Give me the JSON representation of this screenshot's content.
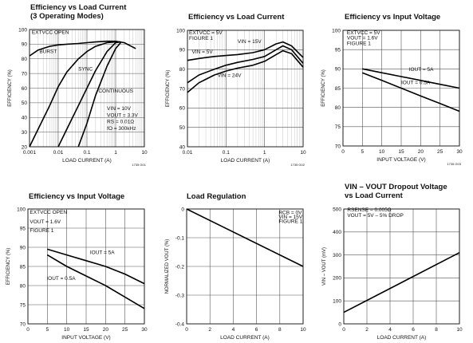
{
  "panels": [
    {
      "id": "p1",
      "title_lines": [
        "Efficiency vs Load Current",
        "(3 Operating Modes)"
      ],
      "chart_data": {
        "type": "line",
        "xlabel": "LOAD CURRENT (A)",
        "ylabel": "EFFICIENCY (%)",
        "xscale": "log",
        "xlim": [
          0.001,
          10
        ],
        "ylim": [
          20,
          100
        ],
        "xticks": [
          0.001,
          0.01,
          0.1,
          1,
          10
        ],
        "xtick_labels": [
          "0.001",
          "0.01",
          "0.1",
          "1",
          "10"
        ],
        "yticks": [
          20,
          30,
          40,
          50,
          60,
          70,
          80,
          90,
          100
        ],
        "grid": true,
        "series": [
          {
            "name": "EXTVCC OPEN",
            "x": [
              0.001,
              0.002,
              0.005,
              0.01,
              0.02,
              0.05,
              0.1,
              0.2,
              0.5,
              1,
              2,
              5
            ],
            "y": [
              82,
              86,
              88.5,
              89.5,
              90,
              90.5,
              91,
              91.5,
              92,
              92,
              91,
              87
            ]
          },
          {
            "name": "BURST",
            "x": [
              0.001,
              0.002,
              0.005,
              0.01,
              0.02,
              0.05,
              0.1,
              0.2,
              0.5,
              1,
              1.5
            ],
            "y": [
              20,
              32,
              48,
              61,
              71,
              80,
              85,
              88.5,
              91,
              91.5,
              91.5
            ]
          },
          {
            "name": "SYNC",
            "x": [
              0.01,
              0.02,
              0.05,
              0.1,
              0.2,
              0.5,
              1,
              1.5
            ],
            "y": [
              20,
              32,
              48,
              60,
              72,
              85,
              91,
              91.5
            ]
          },
          {
            "name": "CONTINUOUS",
            "x": [
              0.05,
              0.1,
              0.2,
              0.5,
              1,
              1.5
            ],
            "y": [
              20,
              36,
              55,
              75,
              87,
              91
            ]
          }
        ],
        "annotations": [
          {
            "text": "EXTVCC OPEN",
            "x": 0.0012,
            "y": 97
          },
          {
            "text": "BURST",
            "x": 0.0022,
            "y": 84
          },
          {
            "text": "SYNC",
            "x": 0.05,
            "y": 72
          },
          {
            "text": "CONTINUOUS",
            "x": 0.25,
            "y": 57
          },
          {
            "text": "VIN = 10V",
            "x": 0.5,
            "y": 45
          },
          {
            "text": "VOUT = 3.3V",
            "x": 0.5,
            "y": 40.5
          },
          {
            "text": "RS = 0.01Ω",
            "x": 0.5,
            "y": 36
          },
          {
            "text": "fO = 300kHz",
            "x": 0.5,
            "y": 31.5
          }
        ],
        "figure_id": "1735 G01"
      }
    },
    {
      "id": "p2",
      "title_lines": [
        "Efficiency vs Load Current"
      ],
      "chart_data": {
        "type": "line",
        "xlabel": "LOAD CURRENT (A)",
        "ylabel": "EFFICIENCY (%)",
        "xscale": "log",
        "xlim": [
          0.01,
          10
        ],
        "ylim": [
          40,
          100
        ],
        "xticks": [
          0.01,
          0.1,
          1,
          10
        ],
        "xtick_labels": [
          "0.01",
          "0.1",
          "1",
          "10"
        ],
        "yticks": [
          40,
          50,
          60,
          70,
          80,
          90,
          100
        ],
        "grid": true,
        "series": [
          {
            "name": "VIN = 5V",
            "x": [
              0.01,
              0.02,
              0.05,
              0.1,
              0.2,
              0.5,
              1,
              2,
              3,
              5,
              10
            ],
            "y": [
              84.5,
              85.5,
              86.5,
              87,
              87.5,
              88.5,
              90,
              93,
              94,
              92,
              86
            ]
          },
          {
            "name": "VIN = 15V",
            "x": [
              0.01,
              0.02,
              0.05,
              0.1,
              0.2,
              0.5,
              1,
              2,
              3,
              5,
              10
            ],
            "y": [
              73,
              77,
              80,
              82,
              83.5,
              85,
              86.5,
              90,
              92,
              90,
              83
            ]
          },
          {
            "name": "VIN = 24V",
            "x": [
              0.01,
              0.02,
              0.05,
              0.1,
              0.2,
              0.5,
              1,
              2,
              3,
              5,
              10
            ],
            "y": [
              68,
              73,
              77,
              79,
              80.5,
              82,
              84,
              87.5,
              89.5,
              88,
              81
            ]
          }
        ],
        "annotations": [
          {
            "text": "EXTVCC = 5V",
            "x": 0.011,
            "y": 98
          },
          {
            "text": "FIGURE 1",
            "x": 0.011,
            "y": 95
          },
          {
            "text": "VIN = 15V",
            "x": 0.2,
            "y": 93.5
          },
          {
            "text": "VIN = 5V",
            "x": 0.013,
            "y": 88
          },
          {
            "text": "VIN = 24V",
            "x": 0.06,
            "y": 76
          }
        ],
        "figure_id": "1735 G02"
      }
    },
    {
      "id": "p3",
      "title_lines": [
        "Efficiency vs Input Voltage"
      ],
      "chart_data": {
        "type": "line",
        "xlabel": "INPUT VOLTAGE (V)",
        "ylabel": "EFFICIENCY (%)",
        "xscale": "linear",
        "xlim": [
          0,
          30
        ],
        "ylim": [
          70,
          100
        ],
        "xticks": [
          0,
          5,
          10,
          15,
          20,
          25,
          30
        ],
        "xtick_labels": [
          "0",
          "5",
          "10",
          "15",
          "20",
          "25",
          "30"
        ],
        "yticks": [
          70,
          75,
          80,
          85,
          90,
          95,
          100
        ],
        "grid": true,
        "series": [
          {
            "name": "IOUT = 5A",
            "x": [
              5,
              10,
              15,
              20,
              25,
              30
            ],
            "y": [
              90,
              89,
              88,
              87,
              86,
              85
            ]
          },
          {
            "name": "IOUT = 0.5A",
            "x": [
              5,
              10,
              15,
              20,
              25,
              30
            ],
            "y": [
              89,
              87,
              85,
              83,
              81,
              79
            ]
          }
        ],
        "annotations": [
          {
            "text": "EXTVCC = 5V",
            "x": 1,
            "y": 99
          },
          {
            "text": "VOUT = 1.6V",
            "x": 1,
            "y": 97.6
          },
          {
            "text": "FIGURE 1",
            "x": 1,
            "y": 96.2
          },
          {
            "text": "IOUT = 5A",
            "x": 17,
            "y": 89.5
          },
          {
            "text": "IOUT = 0.5A",
            "x": 15,
            "y": 86
          }
        ],
        "figure_id": "1735 G03"
      }
    },
    {
      "id": "p4",
      "title_lines": [
        "Efficiency vs Input Voltage"
      ],
      "chart_data": {
        "type": "line",
        "xlabel": "INPUT VOLTAGE (V)",
        "ylabel": "EFFICIENCY (%)",
        "xscale": "linear",
        "xlim": [
          0,
          30
        ],
        "ylim": [
          70,
          100
        ],
        "xticks": [
          0,
          5,
          10,
          15,
          20,
          25,
          30
        ],
        "xtick_labels": [
          "0",
          "5",
          "10",
          "15",
          "20",
          "25",
          "30"
        ],
        "yticks": [
          70,
          75,
          80,
          85,
          90,
          95,
          100
        ],
        "grid": true,
        "series": [
          {
            "name": "IOUT = 5A",
            "x": [
              5,
              10,
              15,
              20,
              25,
              30
            ],
            "y": [
              89.5,
              88,
              86.5,
              85,
              83,
              80.5
            ]
          },
          {
            "name": "IOUT = 0.5A",
            "x": [
              5,
              10,
              15,
              20,
              25,
              30
            ],
            "y": [
              88,
              85,
              82.5,
              80,
              77,
              74
            ]
          }
        ],
        "annotations": [
          {
            "text": "EXTVCC OPEN",
            "x": 0.5,
            "y": 98.7
          },
          {
            "text": "VOUT = 1.6V",
            "x": 0.5,
            "y": 96.3
          },
          {
            "text": "FIGURE 1",
            "x": 0.5,
            "y": 94
          },
          {
            "text": "IOUT = 5A",
            "x": 16,
            "y": 88.2
          },
          {
            "text": "IOUT = 0.5A",
            "x": 4.8,
            "y": 81.5
          }
        ]
      }
    },
    {
      "id": "p5",
      "title_lines": [
        "Load Regulation"
      ],
      "chart_data": {
        "type": "line",
        "xlabel": "LOAD CURRENT (A)",
        "ylabel": "NORMALIZED VOUT (%)",
        "xscale": "linear",
        "xlim": [
          0,
          10
        ],
        "ylim": [
          -0.4,
          0
        ],
        "xticks": [
          0,
          2,
          4,
          6,
          8,
          10
        ],
        "xtick_labels": [
          "0",
          "2",
          "4",
          "6",
          "8",
          "10"
        ],
        "yticks": [
          -0.4,
          -0.3,
          -0.2,
          -0.1,
          0
        ],
        "ytick_labels": [
          "-0.4",
          "-0.3",
          "-0.2",
          "-0.1",
          "0"
        ],
        "grid": true,
        "series": [
          {
            "name": "",
            "x": [
              0,
              10
            ],
            "y": [
              0,
              -0.2
            ]
          }
        ],
        "annotations": [
          {
            "text": "RCB = 0V",
            "x": 7.9,
            "y": -0.018
          },
          {
            "text": "VIN = 15V",
            "x": 7.9,
            "y": -0.033
          },
          {
            "text": "FIGURE 1",
            "x": 7.9,
            "y": -0.048
          }
        ]
      }
    },
    {
      "id": "p6",
      "title_lines": [
        "VIN – VOUT Dropout Voltage",
        "vs Load Current"
      ],
      "chart_data": {
        "type": "line",
        "xlabel": "LOAD CURRENT (A)",
        "ylabel": "VIN – VOUT (mV)",
        "xscale": "linear",
        "xlim": [
          0,
          10
        ],
        "ylim": [
          0,
          500
        ],
        "xticks": [
          0,
          2,
          4,
          6,
          8,
          10
        ],
        "xtick_labels": [
          "0",
          "2",
          "4",
          "6",
          "8",
          "10"
        ],
        "yticks": [
          0,
          100,
          200,
          300,
          400,
          500
        ],
        "grid": true,
        "series": [
          {
            "name": "",
            "x": [
              0,
              10
            ],
            "y": [
              50,
              310
            ]
          }
        ],
        "annotations": [
          {
            "text": "RSENSE = 0.005Ω",
            "x": 0.3,
            "y": 490
          },
          {
            "text": "VOUT = 5V – 5% DROP",
            "x": 0.3,
            "y": 465
          }
        ]
      }
    }
  ]
}
